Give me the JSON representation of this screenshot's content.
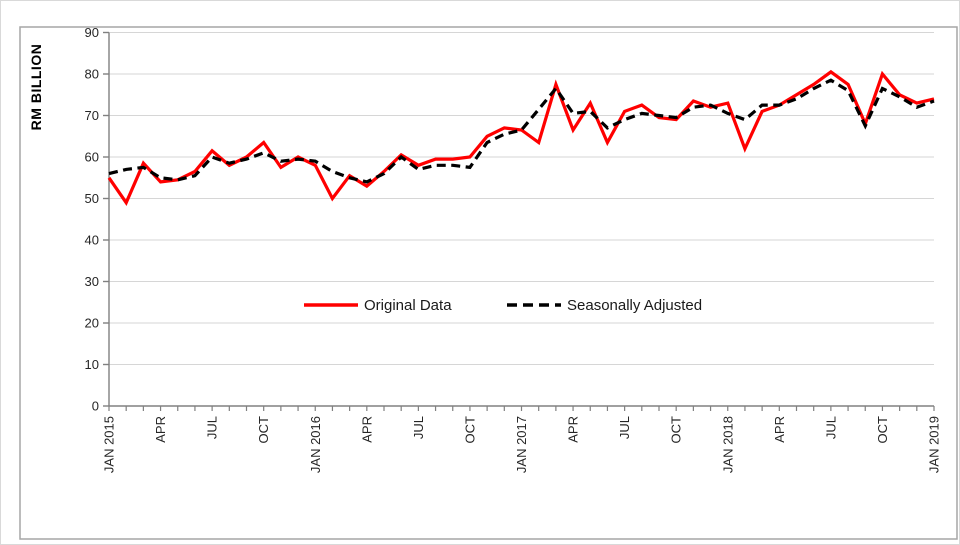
{
  "chart_data": {
    "type": "line",
    "title": "",
    "ylabel": "RM BILLION",
    "xlabel": "",
    "ylim": [
      0,
      90
    ],
    "ytick_step": 10,
    "ytick_labels": [
      "0",
      "10",
      "20",
      "30",
      "40",
      "50",
      "60",
      "70",
      "80",
      "90"
    ],
    "grid": "horizontal",
    "legend_position": "inside-center",
    "x_tick_labels": [
      "JAN 2015",
      "APR",
      "JUL",
      "OCT",
      "JAN 2016",
      "APR",
      "JUL",
      "OCT",
      "JAN 2017",
      "APR",
      "JUL",
      "OCT",
      "JAN 2018",
      "APR",
      "JUL",
      "OCT",
      "JAN 2019"
    ],
    "x": [
      "Jan 2015",
      "Feb 2015",
      "Mar 2015",
      "Apr 2015",
      "May 2015",
      "Jun 2015",
      "Jul 2015",
      "Aug 2015",
      "Sep 2015",
      "Oct 2015",
      "Nov 2015",
      "Dec 2015",
      "Jan 2016",
      "Feb 2016",
      "Mar 2016",
      "Apr 2016",
      "May 2016",
      "Jun 2016",
      "Jul 2016",
      "Aug 2016",
      "Sep 2016",
      "Oct 2016",
      "Nov 2016",
      "Dec 2016",
      "Jan 2017",
      "Feb 2017",
      "Mar 2017",
      "Apr 2017",
      "May 2017",
      "Jun 2017",
      "Jul 2017",
      "Aug 2017",
      "Sep 2017",
      "Oct 2017",
      "Nov 2017",
      "Dec 2017",
      "Jan 2018",
      "Feb 2018",
      "Mar 2018",
      "Apr 2018",
      "May 2018",
      "Jun 2018",
      "Jul 2018",
      "Aug 2018",
      "Sep 2018",
      "Oct 2018",
      "Nov 2018",
      "Dec 2018",
      "Jan 2019"
    ],
    "series": [
      {
        "name": "Original Data",
        "color": "#FF0000",
        "style": "solid",
        "values": [
          55,
          49,
          58.5,
          54,
          54.5,
          56.5,
          61.5,
          58,
          60,
          63.5,
          57.5,
          60,
          58,
          50,
          55.5,
          53,
          56.5,
          60.5,
          58,
          59.5,
          59.5,
          60,
          65,
          67,
          66.5,
          63.5,
          77.5,
          66.5,
          73,
          63.5,
          71,
          72.5,
          69.5,
          69,
          73.5,
          72,
          73,
          62,
          71,
          72.5,
          75,
          77.5,
          80.5,
          77.5,
          68,
          80,
          75,
          73,
          74
        ]
      },
      {
        "name": "Seasonally Adjusted",
        "color": "#000000",
        "style": "dashed",
        "values": [
          56,
          57,
          57.5,
          55,
          54.5,
          55.5,
          60,
          58.5,
          59.5,
          61,
          59,
          59.5,
          59,
          56.5,
          55,
          54,
          56,
          60,
          57,
          58,
          58,
          57.5,
          63.5,
          65.5,
          66.5,
          71.5,
          76.5,
          70.5,
          71,
          67,
          69,
          70.5,
          70,
          69.5,
          72,
          72.5,
          70.5,
          69,
          72.5,
          72.5,
          74,
          76.5,
          78.5,
          76,
          67.5,
          76.5,
          74.5,
          72,
          73.5
        ]
      }
    ],
    "colors": {
      "grid": "#d6d6d6",
      "axis": "#808080",
      "frame": "#a6a6a6",
      "tick_text": "#262626"
    }
  }
}
